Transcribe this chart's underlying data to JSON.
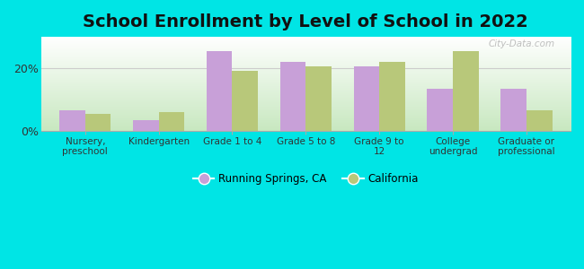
{
  "title": "School Enrollment by Level of School in 2022",
  "categories": [
    "Nursery,\npreschool",
    "Kindergarten",
    "Grade 1 to 4",
    "Grade 5 to 8",
    "Grade 9 to\n12",
    "College\nundergrad",
    "Graduate or\nprofessional"
  ],
  "running_springs": [
    6.5,
    3.5,
    25.5,
    22.0,
    20.5,
    13.5,
    13.5
  ],
  "california": [
    5.5,
    6.0,
    19.0,
    20.5,
    22.0,
    25.5,
    6.5
  ],
  "rs_color": "#c8a0d8",
  "ca_color": "#b8c87a",
  "background_color": "#00e5e5",
  "plot_bg_top": "#f0f8f0",
  "plot_bg_bottom": "#c8e8c0",
  "ylim": [
    0,
    30
  ],
  "yticks": [
    0,
    20
  ],
  "ytick_labels": [
    "0%",
    "20%"
  ],
  "bar_width": 0.35,
  "legend_rs": "Running Springs, CA",
  "legend_ca": "California",
  "title_fontsize": 14,
  "watermark": "City-Data.com"
}
